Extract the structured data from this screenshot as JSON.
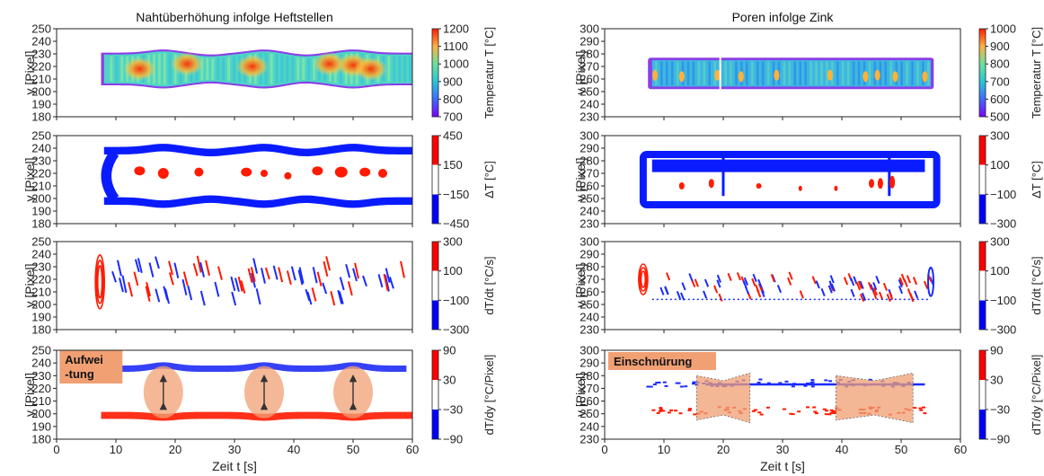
{
  "chart_data": [
    {
      "type": "heatmap",
      "title": "Nahtüberhöhung infolge Heftstellen",
      "xlabel": "Zeit t [s]",
      "xlim": [
        0,
        60
      ],
      "xticks": [
        "0",
        "10",
        "20",
        "30",
        "40",
        "50",
        "60"
      ],
      "panels": [
        {
          "ylabel": "y [Pixel]",
          "ylim": [
            180,
            250
          ],
          "yticks": [
            "180",
            "190",
            "200",
            "210",
            "220",
            "230",
            "240",
            "250"
          ],
          "colorbar": {
            "label": "Temperatur T [°C]",
            "min": 700,
            "max": 1200,
            "ticks": [
              "700",
              "800",
              "900",
              "1000",
              "1100",
              "1200"
            ],
            "colormap": "rainbow"
          }
        },
        {
          "ylabel": "y [Pixel]",
          "ylim": [
            180,
            250
          ],
          "yticks": [
            "180",
            "190",
            "200",
            "210",
            "220",
            "230",
            "240",
            "250"
          ],
          "colorbar": {
            "label": "ΔT [°C]",
            "min": -450,
            "max": 450,
            "ticks": [
              "−450",
              "−150",
              "150",
              "450"
            ],
            "colormap": "blue-white-red"
          }
        },
        {
          "ylabel": "y [Pixel]",
          "ylim": [
            180,
            250
          ],
          "yticks": [
            "180",
            "190",
            "200",
            "210",
            "220",
            "230",
            "240",
            "250"
          ],
          "colorbar": {
            "label": "dT/dt [°C/s]",
            "min": -300,
            "max": 300,
            "ticks": [
              "−300",
              "−100",
              "100",
              "300"
            ],
            "colormap": "blue-white-red"
          }
        },
        {
          "ylabel": "y [Pixel]",
          "ylim": [
            180,
            250
          ],
          "yticks": [
            "180",
            "190",
            "200",
            "210",
            "220",
            "230",
            "240",
            "250"
          ],
          "colorbar": {
            "label": "dT/dy [°C/Pixel]",
            "min": -90,
            "max": 90,
            "ticks": [
              "−90",
              "−30",
              "30",
              "90"
            ],
            "colormap": "blue-white-red"
          },
          "annotation": "Aufwei\n-tung",
          "annotation_lines": [
            "Aufwei",
            "-tung"
          ],
          "markers_x": [
            18,
            35,
            50
          ]
        }
      ]
    },
    {
      "type": "heatmap",
      "title": "Poren infolge Zink",
      "xlabel": "Zeit t [s]",
      "xlim": [
        0,
        60
      ],
      "xticks": [
        "0",
        "10",
        "20",
        "30",
        "40",
        "50",
        "60"
      ],
      "panels": [
        {
          "ylabel": "y [Pixel]",
          "ylim": [
            230,
            300
          ],
          "yticks": [
            "230",
            "240",
            "250",
            "260",
            "270",
            "280",
            "290",
            "300"
          ],
          "colorbar": {
            "label": "Temperatur T [°C]",
            "min": 500,
            "max": 1000,
            "ticks": [
              "500",
              "600",
              "700",
              "800",
              "900",
              "1000"
            ],
            "colormap": "rainbow"
          }
        },
        {
          "ylabel": "y [Pixel]",
          "ylim": [
            230,
            300
          ],
          "yticks": [
            "230",
            "240",
            "250",
            "260",
            "270",
            "280",
            "290",
            "300"
          ],
          "colorbar": {
            "label": "ΔT [°C]",
            "min": -300,
            "max": 300,
            "ticks": [
              "−300",
              "−100",
              "100",
              "300"
            ],
            "colormap": "blue-white-red"
          }
        },
        {
          "ylabel": "y [Pixel]",
          "ylim": [
            230,
            300
          ],
          "yticks": [
            "230",
            "240",
            "250",
            "260",
            "270",
            "280",
            "290",
            "300"
          ],
          "colorbar": {
            "label": "dT/dt [°C/s]",
            "min": -300,
            "max": 300,
            "ticks": [
              "−300",
              "−100",
              "100",
              "300"
            ],
            "colormap": "blue-white-red"
          }
        },
        {
          "ylabel": "y [Pixel]",
          "ylim": [
            230,
            300
          ],
          "yticks": [
            "230",
            "240",
            "250",
            "260",
            "270",
            "280",
            "290",
            "300"
          ],
          "colorbar": {
            "label": "dT/dy [°C/Pixel]",
            "min": -90,
            "max": 90,
            "ticks": [
              "−90",
              "−30",
              "30",
              "90"
            ],
            "colormap": "blue-white-red"
          },
          "annotation": "Einschnürung",
          "annotation_lines": [
            "Einschnürung"
          ],
          "regions_x": [
            [
              15.5,
              24.5
            ],
            [
              39,
              52
            ]
          ]
        }
      ]
    }
  ]
}
